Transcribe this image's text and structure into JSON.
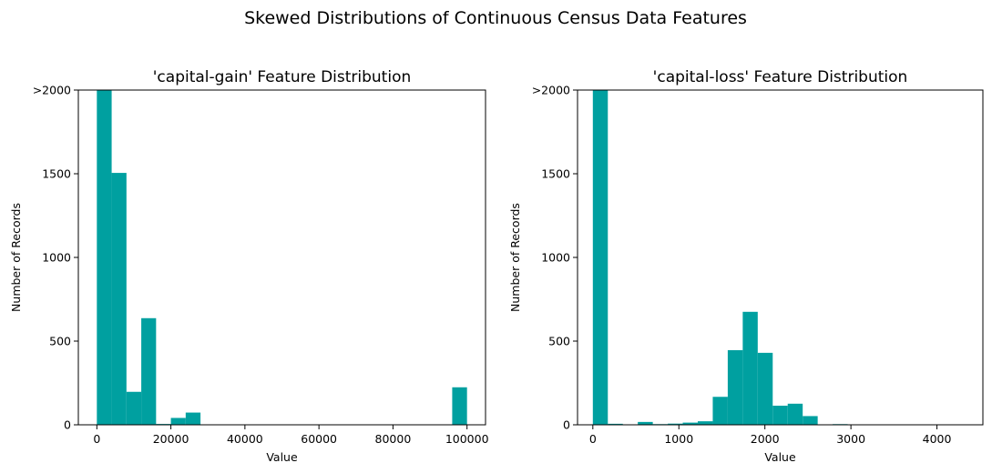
{
  "figure": {
    "suptitle": "Skewed Distributions of Continuous Census Data Features"
  },
  "colors": {
    "bar": "#00A0A0"
  },
  "chart_data": [
    {
      "type": "bar",
      "title": "'capital-gain' Feature Distribution",
      "xlabel": "Value",
      "ylabel": "Number of Records",
      "xlim": [
        -5000,
        104999
      ],
      "ylim": [
        0,
        2000
      ],
      "xticks": [
        0,
        20000,
        40000,
        60000,
        80000,
        100000
      ],
      "xtick_labels": [
        "0",
        "20000",
        "40000",
        "60000",
        "80000",
        "100000"
      ],
      "yticks": [
        0,
        500,
        1000,
        1500,
        2000
      ],
      "ytick_labels": [
        "0",
        "500",
        "1000",
        "1500",
        ">2000"
      ],
      "bin_edges": [
        0,
        3999.96,
        7999.92,
        11999.88,
        15999.84,
        19999.8,
        23999.76,
        27999.72,
        31999.68,
        35999.64,
        39999.6,
        43999.56,
        47999.52,
        51999.48,
        55999.44,
        59999.4,
        63999.36,
        67999.32,
        71999.28,
        75999.24,
        79999.2,
        83999.16,
        87999.12,
        91999.08,
        95999.04,
        99999
      ],
      "values": [
        2000,
        1505,
        197,
        637,
        5,
        41,
        73,
        0,
        2,
        1,
        2,
        0,
        0,
        0,
        0,
        0,
        0,
        0,
        0,
        0,
        0,
        0,
        0,
        0,
        224
      ],
      "note_clipped": "first bin extends beyond axis limit"
    },
    {
      "type": "bar",
      "title": "'capital-loss' Feature Distribution",
      "xlabel": "Value",
      "ylabel": "Number of Records",
      "xlim": [
        -178,
        4534
      ],
      "ylim": [
        0,
        2000
      ],
      "xticks": [
        0,
        1000,
        2000,
        3000,
        4000
      ],
      "xtick_labels": [
        "0",
        "1000",
        "2000",
        "3000",
        "4000"
      ],
      "yticks": [
        0,
        500,
        1000,
        1500,
        2000
      ],
      "ytick_labels": [
        "0",
        "500",
        "1000",
        "1500",
        ">2000"
      ],
      "bin_edges": [
        0,
        174.24,
        348.48,
        522.72,
        696.96,
        871.2,
        1045.44,
        1219.68,
        1393.92,
        1568.16,
        1742.4,
        1916.64,
        2090.88,
        2265.12,
        2439.36,
        2613.6,
        2787.84,
        2962.08,
        3136.32,
        3310.56,
        3484.8,
        3659.04,
        3833.28,
        4007.52,
        4181.76,
        4356
      ],
      "values": [
        2000,
        6,
        0,
        17,
        4,
        7,
        13,
        21,
        167,
        446,
        675,
        430,
        114,
        126,
        52,
        2,
        4,
        2,
        0,
        0,
        0,
        2,
        2,
        0,
        0
      ]
    }
  ]
}
